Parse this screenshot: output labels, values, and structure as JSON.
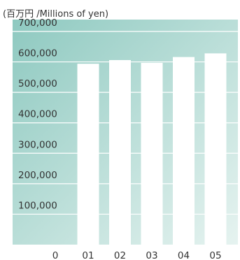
{
  "unit_label": "(百万円 /Millions of yen)",
  "colors": {
    "gradient_dark": "#8ec9c0",
    "gradient_light": "#e6f3f0",
    "bar": "#ffffff",
    "gridline": "#ffffff",
    "text": "#333333"
  },
  "chart_data": {
    "type": "bar",
    "title": "",
    "xlabel": "",
    "ylabel": "(百万円 /Millions of yen)",
    "categories": [
      "01",
      "02",
      "03",
      "04",
      "05"
    ],
    "values": [
      594000,
      606000,
      597000,
      616000,
      628000
    ],
    "ylim": [
      0,
      700000
    ],
    "yticks": [
      0,
      100000,
      200000,
      300000,
      400000,
      500000,
      600000,
      700000
    ],
    "ytick_labels": [
      "0",
      "100,000",
      "200,000",
      "300,000",
      "400,000",
      "500,000",
      "600,000",
      "700,000"
    ],
    "grid": true,
    "legend": "none"
  }
}
